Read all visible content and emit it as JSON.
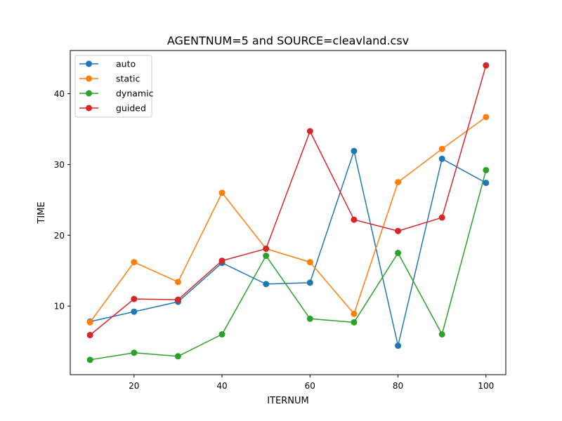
{
  "chart_data": {
    "type": "line",
    "title": "AGENTNUM=5 and SOURCE=cleavland.csv",
    "xlabel": "ITERNUM",
    "ylabel": "TIME",
    "xlim": [
      5.5,
      104.5
    ],
    "ylim": [
      0.3,
      46.1
    ],
    "xticks": [
      20,
      40,
      60,
      80,
      100
    ],
    "yticks": [
      10,
      20,
      30,
      40
    ],
    "grid": false,
    "legend_position": "top-left",
    "x": [
      10,
      20,
      30,
      40,
      50,
      60,
      70,
      80,
      90,
      100
    ],
    "series": [
      {
        "name": "auto",
        "color": "#1f77b4",
        "values": [
          7.8,
          9.2,
          10.6,
          16.1,
          13.1,
          13.3,
          31.9,
          4.4,
          30.8,
          27.4
        ]
      },
      {
        "name": "static",
        "color": "#ff7f0e",
        "values": [
          7.7,
          16.2,
          13.4,
          26.0,
          18.1,
          16.2,
          8.9,
          27.5,
          32.2,
          36.7
        ]
      },
      {
        "name": "dynamic",
        "color": "#2ca02c",
        "values": [
          2.4,
          3.4,
          2.9,
          6.0,
          17.1,
          8.2,
          7.7,
          17.5,
          6.0,
          29.2
        ]
      },
      {
        "name": "guided",
        "color": "#d62728",
        "values": [
          5.9,
          11.0,
          10.9,
          16.4,
          18.1,
          34.7,
          22.2,
          20.6,
          22.5,
          44.0
        ]
      }
    ]
  }
}
